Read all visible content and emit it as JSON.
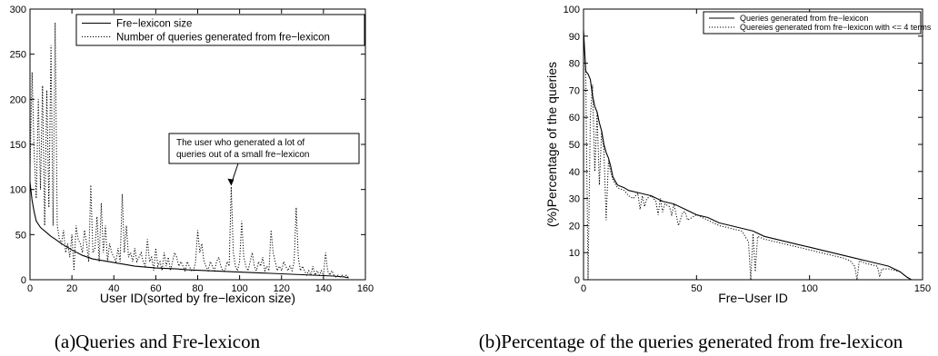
{
  "chart_data": [
    {
      "type": "line",
      "caption": "(a)Queries and Fre-lexicon",
      "xlabel": "User ID(sorted by fre−lexicon size)",
      "ylabel": "",
      "xlim": [
        0,
        160
      ],
      "ylim": [
        0,
        300
      ],
      "xticks": [
        0,
        20,
        40,
        60,
        80,
        100,
        120,
        140,
        160
      ],
      "yticks": [
        0,
        50,
        100,
        150,
        200,
        250,
        300
      ],
      "grid": false,
      "legend_position": "top-right",
      "annotation": {
        "lines": [
          "The user who generated a lot of",
          "queries out of a small fre−lexicon"
        ],
        "x": 96,
        "y": 103
      },
      "series": [
        {
          "name": "Fre−lexicon size",
          "style": "solid",
          "x": [
            0,
            1,
            2,
            3,
            5,
            8,
            10,
            12,
            15,
            20,
            25,
            30,
            35,
            40,
            45,
            50,
            55,
            60,
            65,
            70,
            75,
            80,
            85,
            90,
            95,
            100,
            105,
            110,
            115,
            120,
            125,
            130,
            135,
            140,
            145,
            150,
            152
          ],
          "y": [
            108,
            88,
            75,
            65,
            58,
            52,
            48,
            45,
            40,
            33,
            27,
            23,
            21,
            19,
            17,
            15,
            14,
            13,
            12.5,
            12,
            11,
            10.5,
            10,
            9.5,
            9,
            8.5,
            8,
            7.5,
            7,
            6.5,
            6,
            5.5,
            5,
            4.5,
            4,
            3,
            2
          ]
        },
        {
          "name": "Number of queries generated from fre−lexicon",
          "style": "dotted",
          "x": [
            0,
            1,
            2,
            3,
            4,
            5,
            6,
            7,
            8,
            9,
            10,
            11,
            12,
            13,
            14,
            15,
            16,
            17,
            18,
            19,
            20,
            21,
            22,
            23,
            24,
            25,
            26,
            27,
            28,
            29,
            30,
            31,
            32,
            33,
            34,
            35,
            36,
            37,
            38,
            39,
            40,
            41,
            42,
            43,
            44,
            45,
            46,
            47,
            48,
            49,
            50,
            51,
            52,
            53,
            54,
            55,
            56,
            57,
            58,
            59,
            60,
            61,
            62,
            63,
            64,
            65,
            66,
            67,
            68,
            69,
            70,
            71,
            72,
            73,
            74,
            75,
            76,
            77,
            78,
            79,
            80,
            81,
            82,
            83,
            84,
            85,
            86,
            87,
            88,
            89,
            90,
            91,
            92,
            93,
            94,
            95,
            96,
            97,
            98,
            99,
            100,
            101,
            102,
            103,
            104,
            105,
            106,
            107,
            108,
            109,
            110,
            111,
            112,
            113,
            114,
            115,
            116,
            117,
            118,
            119,
            120,
            121,
            122,
            123,
            124,
            125,
            126,
            127,
            128,
            129,
            130,
            131,
            132,
            133,
            134,
            135,
            136,
            137,
            138,
            139,
            140,
            141,
            142,
            143,
            144,
            145,
            146,
            147,
            148,
            149,
            150,
            151,
            152
          ],
          "y": [
            120,
            230,
            140,
            90,
            200,
            100,
            215,
            60,
            210,
            80,
            260,
            60,
            285,
            60,
            45,
            40,
            55,
            30,
            40,
            25,
            50,
            10,
            60,
            45,
            40,
            30,
            55,
            40,
            20,
            105,
            30,
            35,
            70,
            20,
            85,
            30,
            60,
            20,
            40,
            30,
            25,
            20,
            35,
            20,
            95,
            30,
            60,
            25,
            30,
            20,
            35,
            20,
            25,
            30,
            20,
            15,
            45,
            20,
            25,
            10,
            35,
            15,
            20,
            10,
            30,
            15,
            25,
            10,
            20,
            30,
            25,
            15,
            20,
            15,
            10,
            20,
            15,
            10,
            10,
            20,
            55,
            30,
            40,
            20,
            15,
            10,
            20,
            15,
            10,
            20,
            25,
            15,
            10,
            10,
            20,
            15,
            103,
            30,
            15,
            10,
            20,
            65,
            25,
            15,
            10,
            20,
            30,
            15,
            10,
            20,
            15,
            25,
            10,
            15,
            10,
            55,
            30,
            20,
            10,
            15,
            10,
            20,
            15,
            10,
            15,
            10,
            20,
            80,
            25,
            10,
            15,
            10,
            5,
            10,
            5,
            15,
            5,
            10,
            5,
            10,
            5,
            30,
            10,
            5,
            10,
            5,
            3,
            5,
            3,
            5,
            3,
            5,
            2
          ]
        }
      ]
    },
    {
      "type": "line",
      "caption": "(b)Percentage of the queries generated from fre-lexicon",
      "xlabel": "Fre−User ID",
      "ylabel": "(%)Percentage of the queries",
      "xlim": [
        0,
        150
      ],
      "ylim": [
        0,
        100
      ],
      "xticks": [
        0,
        50,
        100,
        150
      ],
      "yticks": [
        0,
        10,
        20,
        30,
        40,
        50,
        60,
        70,
        80,
        90,
        100
      ],
      "grid": false,
      "legend_position": "top-right",
      "series": [
        {
          "name": "Queries generated from fre−lexicon",
          "style": "solid",
          "x": [
            0,
            1,
            2,
            3,
            4,
            5,
            6,
            7,
            8,
            9,
            10,
            11,
            12,
            13,
            15,
            18,
            20,
            25,
            30,
            35,
            40,
            45,
            50,
            55,
            60,
            65,
            70,
            75,
            80,
            85,
            90,
            95,
            100,
            105,
            110,
            115,
            120,
            125,
            130,
            135,
            140,
            143,
            145
          ],
          "y": [
            92,
            77,
            76,
            74,
            68,
            64,
            62,
            58,
            55,
            50,
            47,
            45,
            42,
            38,
            35,
            34,
            33,
            32,
            31,
            29,
            28,
            26,
            24,
            23,
            21,
            20,
            19,
            18,
            16,
            15,
            14,
            13,
            12,
            11,
            10,
            9,
            8,
            7,
            6,
            5,
            3,
            1,
            0
          ]
        },
        {
          "name": "Quereies generated from fre−lexicon with <= 4 terms",
          "style": "dotted",
          "x": [
            0,
            1,
            2,
            3,
            4,
            5,
            6,
            7,
            8,
            9,
            10,
            11,
            12,
            13,
            15,
            18,
            20,
            22,
            24,
            25,
            26,
            27,
            28,
            30,
            32,
            33,
            34,
            35,
            36,
            38,
            39,
            40,
            42,
            44,
            45,
            46,
            50,
            55,
            60,
            65,
            70,
            73,
            74,
            75,
            76,
            77,
            80,
            85,
            90,
            95,
            100,
            105,
            110,
            115,
            118,
            120,
            121,
            122,
            125,
            130,
            131,
            132,
            135,
            140,
            143,
            145
          ],
          "y": [
            92,
            75,
            0,
            60,
            72,
            40,
            62,
            35,
            55,
            48,
            22,
            44,
            40,
            37,
            34,
            33,
            31,
            30,
            32,
            26,
            31,
            27,
            30,
            31,
            29,
            24,
            30,
            25,
            28,
            27,
            24,
            28,
            20,
            25,
            25,
            22,
            24,
            22,
            20,
            19,
            18,
            14,
            0,
            17,
            3,
            16,
            15,
            14,
            13,
            12,
            11,
            10,
            9,
            8,
            7,
            5,
            0,
            7,
            6,
            5,
            1,
            4,
            4,
            3,
            1,
            0
          ]
        }
      ]
    }
  ]
}
